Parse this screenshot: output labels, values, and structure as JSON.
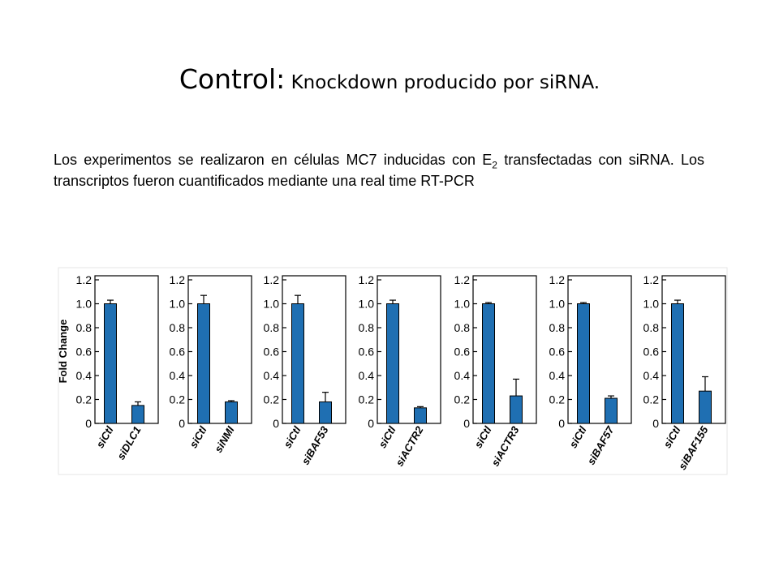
{
  "slide": {
    "title_main": "Control:",
    "title_sub": " Knockdown producido por siRNA.",
    "description_part1": "Los experimentos se realizaron en células MC7 inducidas con E",
    "description_sub": "2",
    "description_part2": " transfectadas con siRNA. Los transcriptos fueron cuantificados mediante una real time RT-PCR"
  },
  "chart_data": {
    "type": "bar",
    "ylabel": "Fold Change",
    "ylim": [
      0,
      1.2
    ],
    "yticks": [
      "0",
      "0.2",
      "0.4",
      "0.6",
      "0.8",
      "1.0",
      "1.2"
    ],
    "bar_color": "#1f6fb2",
    "error_bars": true,
    "panels": [
      {
        "categories": [
          "siCtl",
          "siDLC1"
        ],
        "values": [
          1.0,
          0.15
        ],
        "errors": [
          0.03,
          0.03
        ]
      },
      {
        "categories": [
          "siCtl",
          "siNMI"
        ],
        "values": [
          1.0,
          0.18
        ],
        "errors": [
          0.07,
          0.01
        ]
      },
      {
        "categories": [
          "siCtl",
          "siBAF53"
        ],
        "values": [
          1.0,
          0.18
        ],
        "errors": [
          0.07,
          0.08
        ]
      },
      {
        "categories": [
          "siCtl",
          "siACTR2"
        ],
        "values": [
          1.0,
          0.13
        ],
        "errors": [
          0.03,
          0.01
        ]
      },
      {
        "categories": [
          "siCtl",
          "siACTR3"
        ],
        "values": [
          1.0,
          0.23
        ],
        "errors": [
          0.01,
          0.14
        ]
      },
      {
        "categories": [
          "siCtl",
          "siBAF57"
        ],
        "values": [
          1.0,
          0.21
        ],
        "errors": [
          0.01,
          0.02
        ]
      },
      {
        "categories": [
          "siCtl",
          "siBAF155"
        ],
        "values": [
          1.0,
          0.27
        ],
        "errors": [
          0.03,
          0.12
        ]
      }
    ]
  }
}
